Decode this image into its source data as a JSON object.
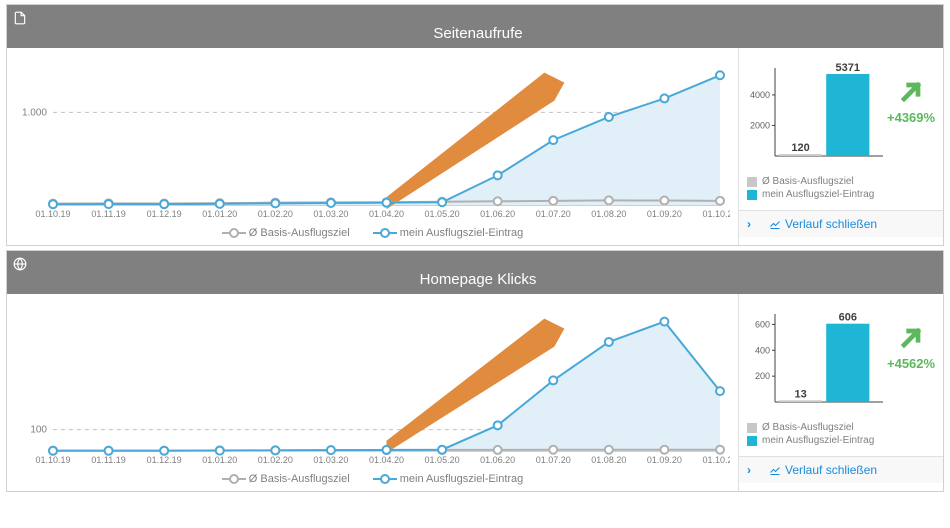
{
  "panels": [
    {
      "title": "Seitenaufrufe",
      "icon": "document-icon",
      "chart": {
        "type": "line",
        "x_labels": [
          "01.10.19",
          "01.11.19",
          "01.12.19",
          "01.01.20",
          "01.02.20",
          "01.03.20",
          "01.04.20",
          "01.05.20",
          "01.06.20",
          "01.07.20",
          "01.08.20",
          "01.09.20",
          "01.10.20"
        ],
        "y_ref_line": 1000,
        "y_ref_label": "1.000",
        "y_max": 1500,
        "series": [
          {
            "name": "Ø Basis-Ausflugsziel",
            "color": "#b0b0b0",
            "fill": false,
            "values": [
              15,
              18,
              16,
              20,
              25,
              28,
              30,
              35,
              40,
              45,
              50,
              48,
              45
            ]
          },
          {
            "name": "mein Ausflugsziel-Eintrag",
            "color": "#49a8d8",
            "fill": true,
            "fill_color": "#e1f0f8",
            "values": [
              8,
              10,
              9,
              12,
              18,
              22,
              25,
              30,
              320,
              700,
              950,
              1150,
              1400
            ]
          }
        ],
        "label_fontsize": 10,
        "grid_color": "#c0c0c0",
        "axis_color": "#a0a0a0",
        "arrow_color": "#e08b3e"
      },
      "mini": {
        "type": "bar",
        "values": [
          120,
          5371
        ],
        "labels": [
          "120",
          "5371"
        ],
        "colors": [
          "#c8c8c8",
          "#1fb5d4"
        ],
        "y_ticks": [
          2000,
          4000
        ],
        "y_max": 5500,
        "pct": "+4369%",
        "trend_color": "#5cb85c",
        "axis_color": "#404040"
      },
      "legend_items": [
        {
          "label": "Ø Basis-Ausflugsziel",
          "color": "#c8c8c8"
        },
        {
          "label": "mein Ausflugsziel-Eintrag",
          "color": "#1fb5d4"
        }
      ],
      "close_label": "Verlauf schließen"
    },
    {
      "title": "Homepage Klicks",
      "icon": "globe-icon",
      "chart": {
        "type": "line",
        "x_labels": [
          "01.10.19",
          "01.11.19",
          "01.12.19",
          "01.01.20",
          "01.02.20",
          "01.03.20",
          "01.04.20",
          "01.05.20",
          "01.06.20",
          "01.07.20",
          "01.08.20",
          "01.09.20",
          "01.10.20"
        ],
        "y_ref_line": 100,
        "y_ref_label": "100",
        "y_max": 650,
        "series": [
          {
            "name": "Ø Basis-Ausflugsziel",
            "color": "#b0b0b0",
            "fill": false,
            "values": [
              2,
              2,
              2,
              3,
              3,
              4,
              4,
              5,
              5,
              6,
              6,
              6,
              6
            ]
          },
          {
            "name": "mein Ausflugsziel-Eintrag",
            "color": "#49a8d8",
            "fill": true,
            "fill_color": "#e1f0f8",
            "values": [
              1,
              1,
              1,
              2,
              3,
              4,
              5,
              6,
              120,
              330,
              510,
              605,
              280
            ]
          }
        ],
        "label_fontsize": 10,
        "grid_color": "#c0c0c0",
        "axis_color": "#a0a0a0",
        "arrow_color": "#e08b3e"
      },
      "mini": {
        "type": "bar",
        "values": [
          13,
          606
        ],
        "labels": [
          "13",
          "606"
        ],
        "colors": [
          "#c8c8c8",
          "#1fb5d4"
        ],
        "y_ticks": [
          200,
          400,
          600
        ],
        "y_max": 650,
        "pct": "+4562%",
        "trend_color": "#5cb85c",
        "axis_color": "#404040"
      },
      "legend_items": [
        {
          "label": "Ø Basis-Ausflugsziel",
          "color": "#c8c8c8"
        },
        {
          "label": "mein Ausflugsziel-Eintrag",
          "color": "#1fb5d4"
        }
      ],
      "close_label": "Verlauf schließen"
    }
  ]
}
